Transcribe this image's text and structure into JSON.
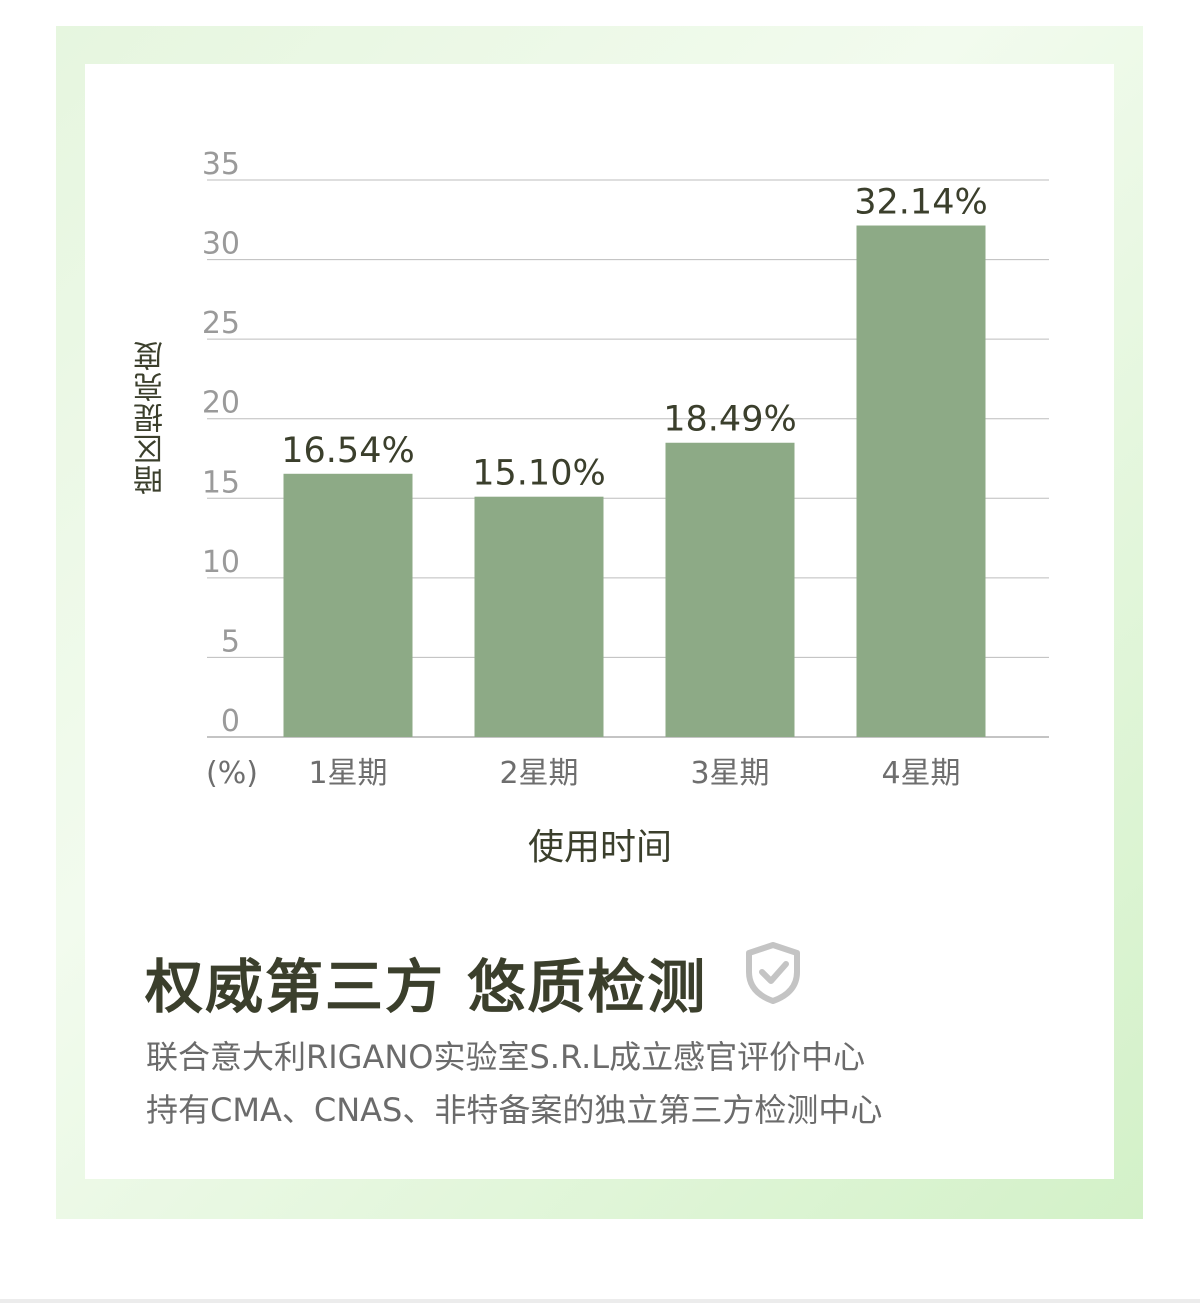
{
  "chart_data": {
    "type": "bar",
    "categories": [
      "1星期",
      "2星期",
      "3星期",
      "4星期"
    ],
    "values": [
      16.54,
      15.1,
      18.49,
      32.14
    ],
    "data_labels": [
      "16.54%",
      "15.10%",
      "18.49%",
      "32.14%"
    ],
    "ylabel": "暗区提亮度",
    "xlabel": "使用时间",
    "y_unit_label": "(%)",
    "ylim": [
      0,
      35
    ],
    "yticks": [
      0,
      5,
      10,
      15,
      20,
      25,
      30,
      35
    ],
    "grid": true,
    "bar_color": "#8daa86"
  },
  "heading": "权威第三方  悠质检测",
  "shield_icon": "shield-check-icon",
  "desc_line1": "联合意大利RIGANO实验室S.R.L成立感官评价中心",
  "desc_line2": "持有CMA、CNAS、非特备案的独立第三方检测中心",
  "colors": {
    "frame_green": "#dff4d6",
    "text_dark": "#3b3f2c",
    "desc_gray": "#6b6b6b"
  }
}
